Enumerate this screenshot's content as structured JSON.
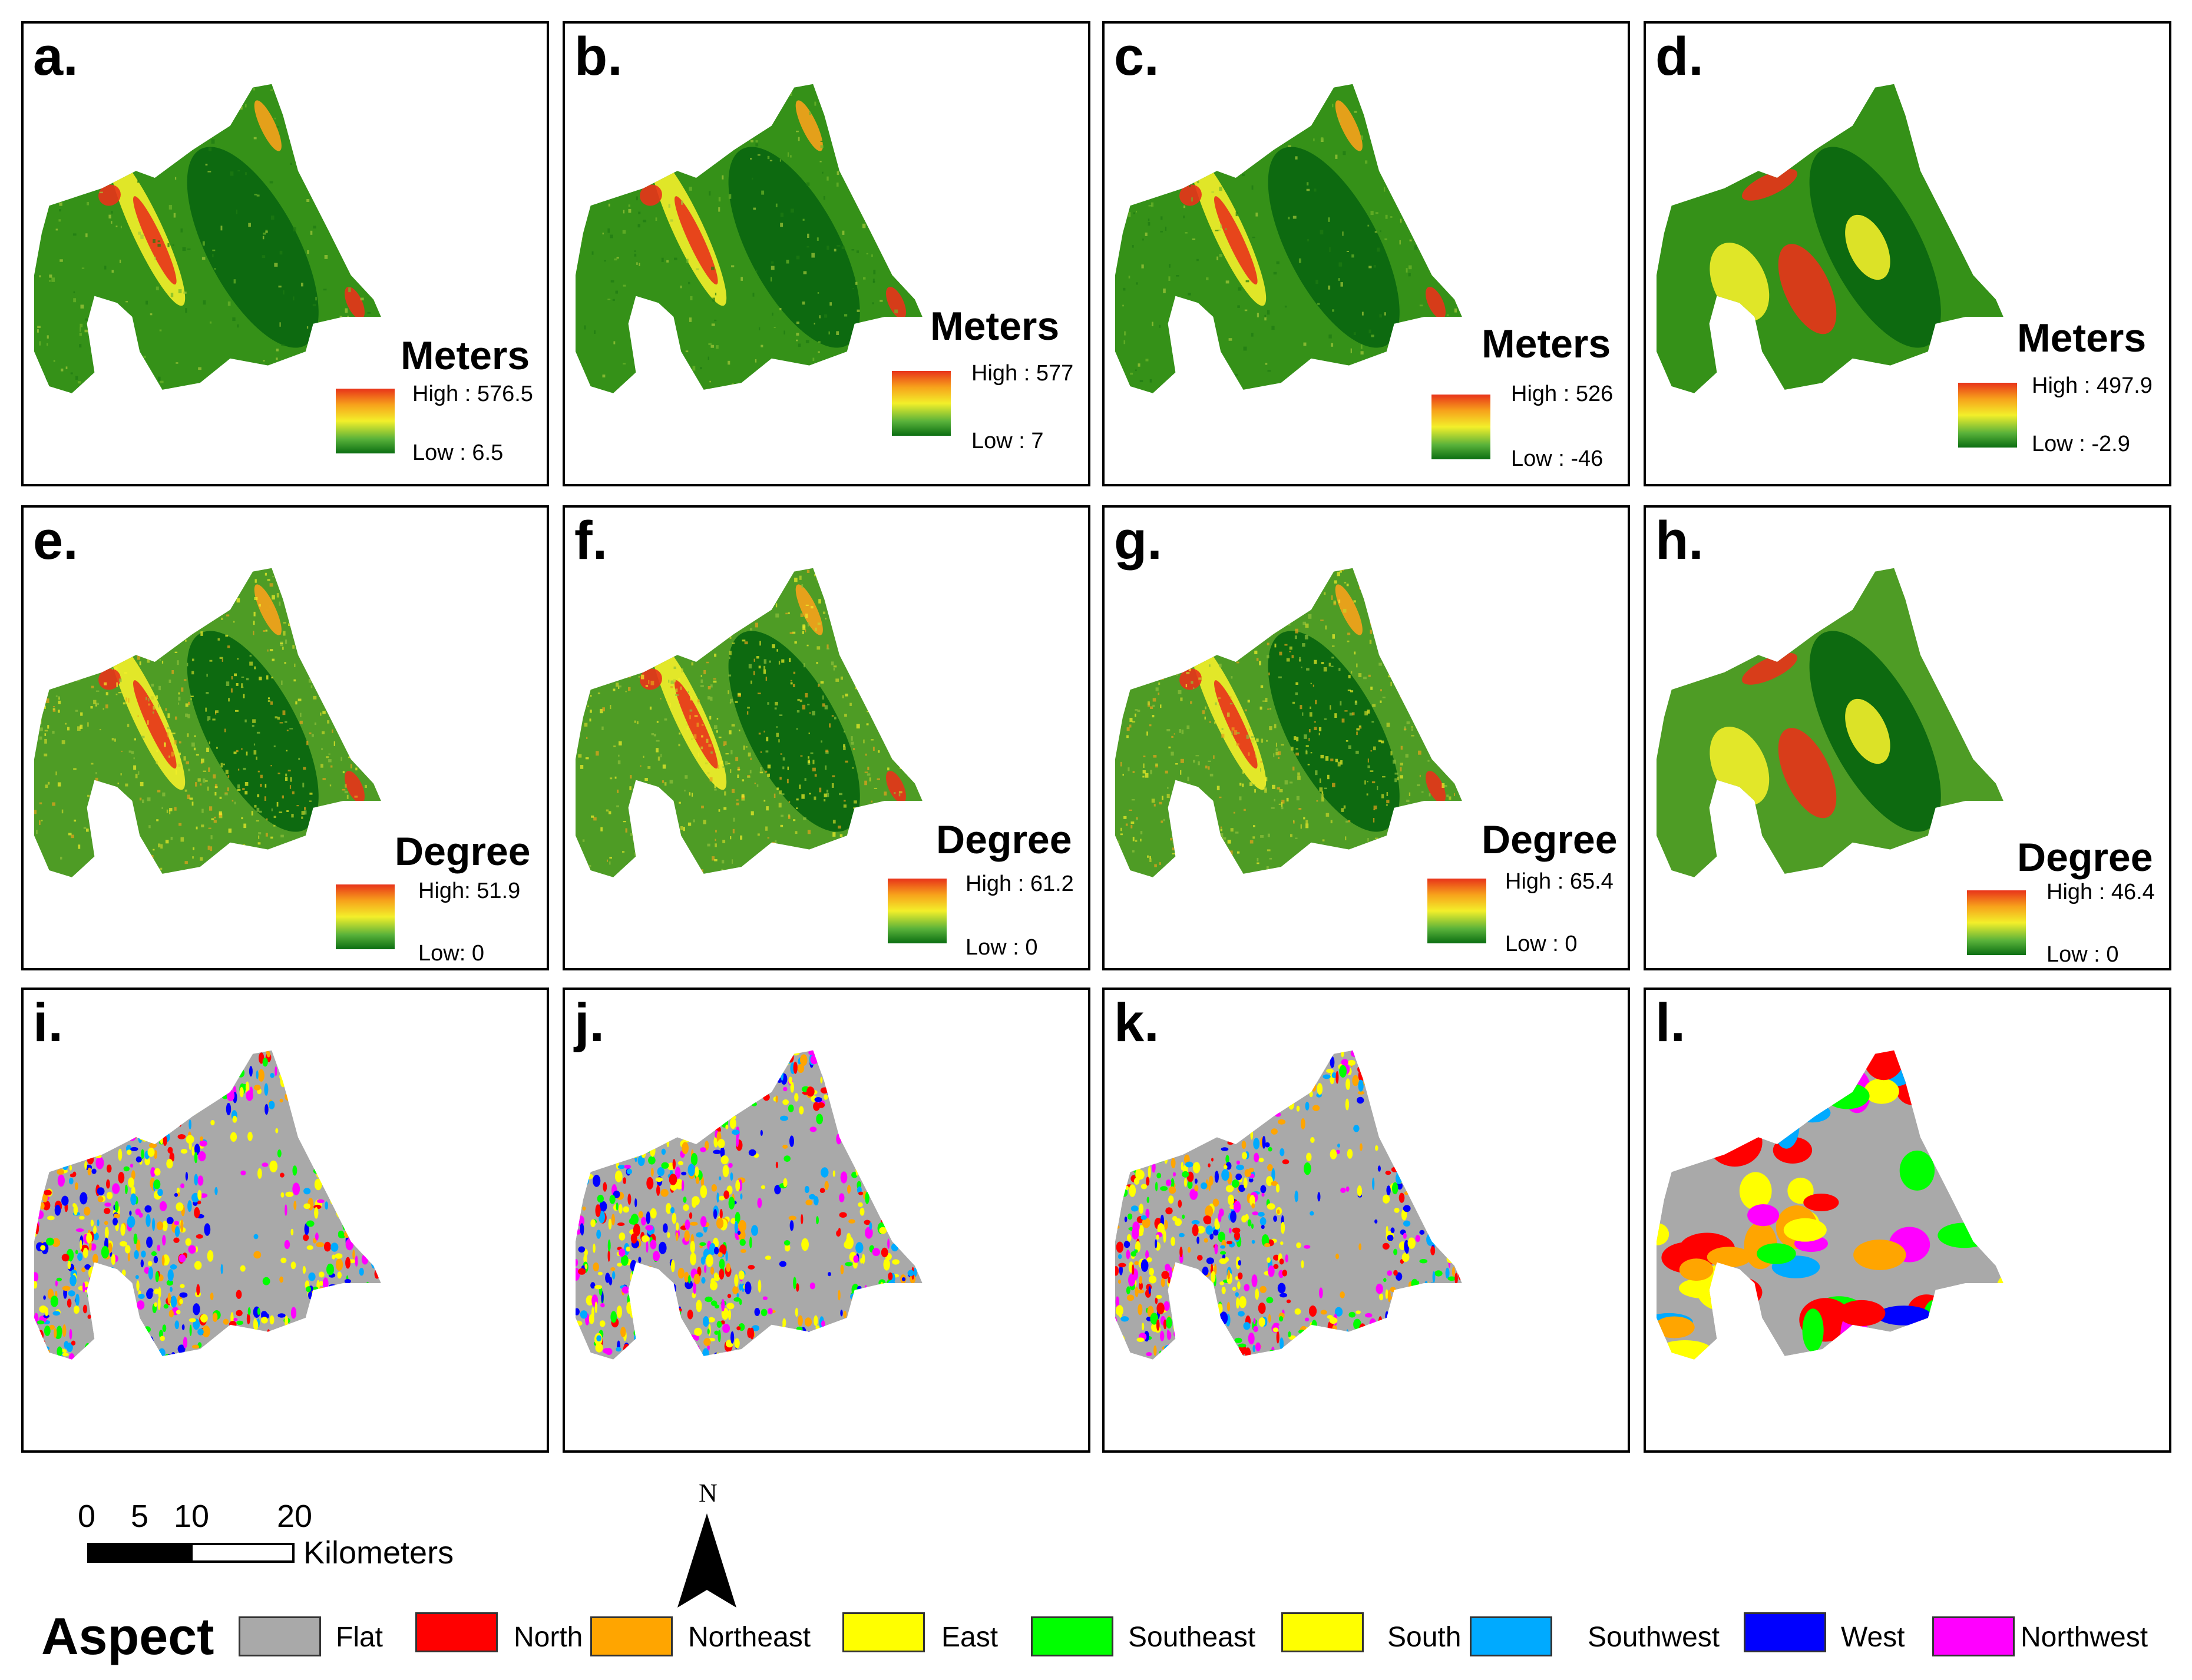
{
  "panels": [
    {
      "label": "a.",
      "type": "elevation",
      "unit": "Meters",
      "high": "High : 576.5",
      "low": "Low : 6.5",
      "style": "fine"
    },
    {
      "label": "b.",
      "type": "elevation",
      "unit": "Meters",
      "high": "High : 577",
      "low": "Low : 7",
      "style": "fine"
    },
    {
      "label": "c.",
      "type": "elevation",
      "unit": "Meters",
      "high": "High : 526",
      "low": "Low : -46",
      "style": "fine"
    },
    {
      "label": "d.",
      "type": "elevation",
      "unit": "Meters",
      "high": "High : 497.9",
      "low": "Low : -2.9",
      "style": "smooth"
    },
    {
      "label": "e.",
      "type": "slope",
      "unit": "Degree",
      "high": "High: 51.9",
      "low": "Low: 0",
      "style": "fine"
    },
    {
      "label": "f.",
      "type": "slope",
      "unit": "Degree",
      "high": "High : 61.2",
      "low": "Low : 0",
      "style": "fine"
    },
    {
      "label": "g.",
      "type": "slope",
      "unit": "Degree",
      "high": "High : 65.4",
      "low": "Low : 0",
      "style": "fine"
    },
    {
      "label": "h.",
      "type": "slope",
      "unit": "Degree",
      "high": "High : 46.4",
      "low": "Low : 0",
      "style": "smooth"
    },
    {
      "label": "i.",
      "type": "aspect",
      "style": "fine"
    },
    {
      "label": "j.",
      "type": "aspect",
      "style": "fine"
    },
    {
      "label": "k.",
      "type": "aspect",
      "style": "fine"
    },
    {
      "label": "l.",
      "type": "aspect",
      "style": "smooth"
    }
  ],
  "scale_bar": {
    "ticks": [
      "0",
      "5",
      "10",
      "20"
    ],
    "unit": "Kilometers"
  },
  "north_arrow": {
    "label": "N"
  },
  "aspect_legend": {
    "title": "Aspect",
    "classes": [
      {
        "name": "Flat",
        "color": "#a9a9a9"
      },
      {
        "name": "North",
        "color": "#ff0000"
      },
      {
        "name": "Northeast",
        "color": "#ffa500"
      },
      {
        "name": "East",
        "color": "#ffff00"
      },
      {
        "name": "Southeast",
        "color": "#00ff00"
      },
      {
        "name": "South",
        "color": "#ffff00"
      },
      {
        "name": "Southwest",
        "color": "#00aaff"
      },
      {
        "name": "West",
        "color": "#0000ff"
      },
      {
        "name": "Northwest",
        "color": "#ff00ff"
      }
    ]
  }
}
